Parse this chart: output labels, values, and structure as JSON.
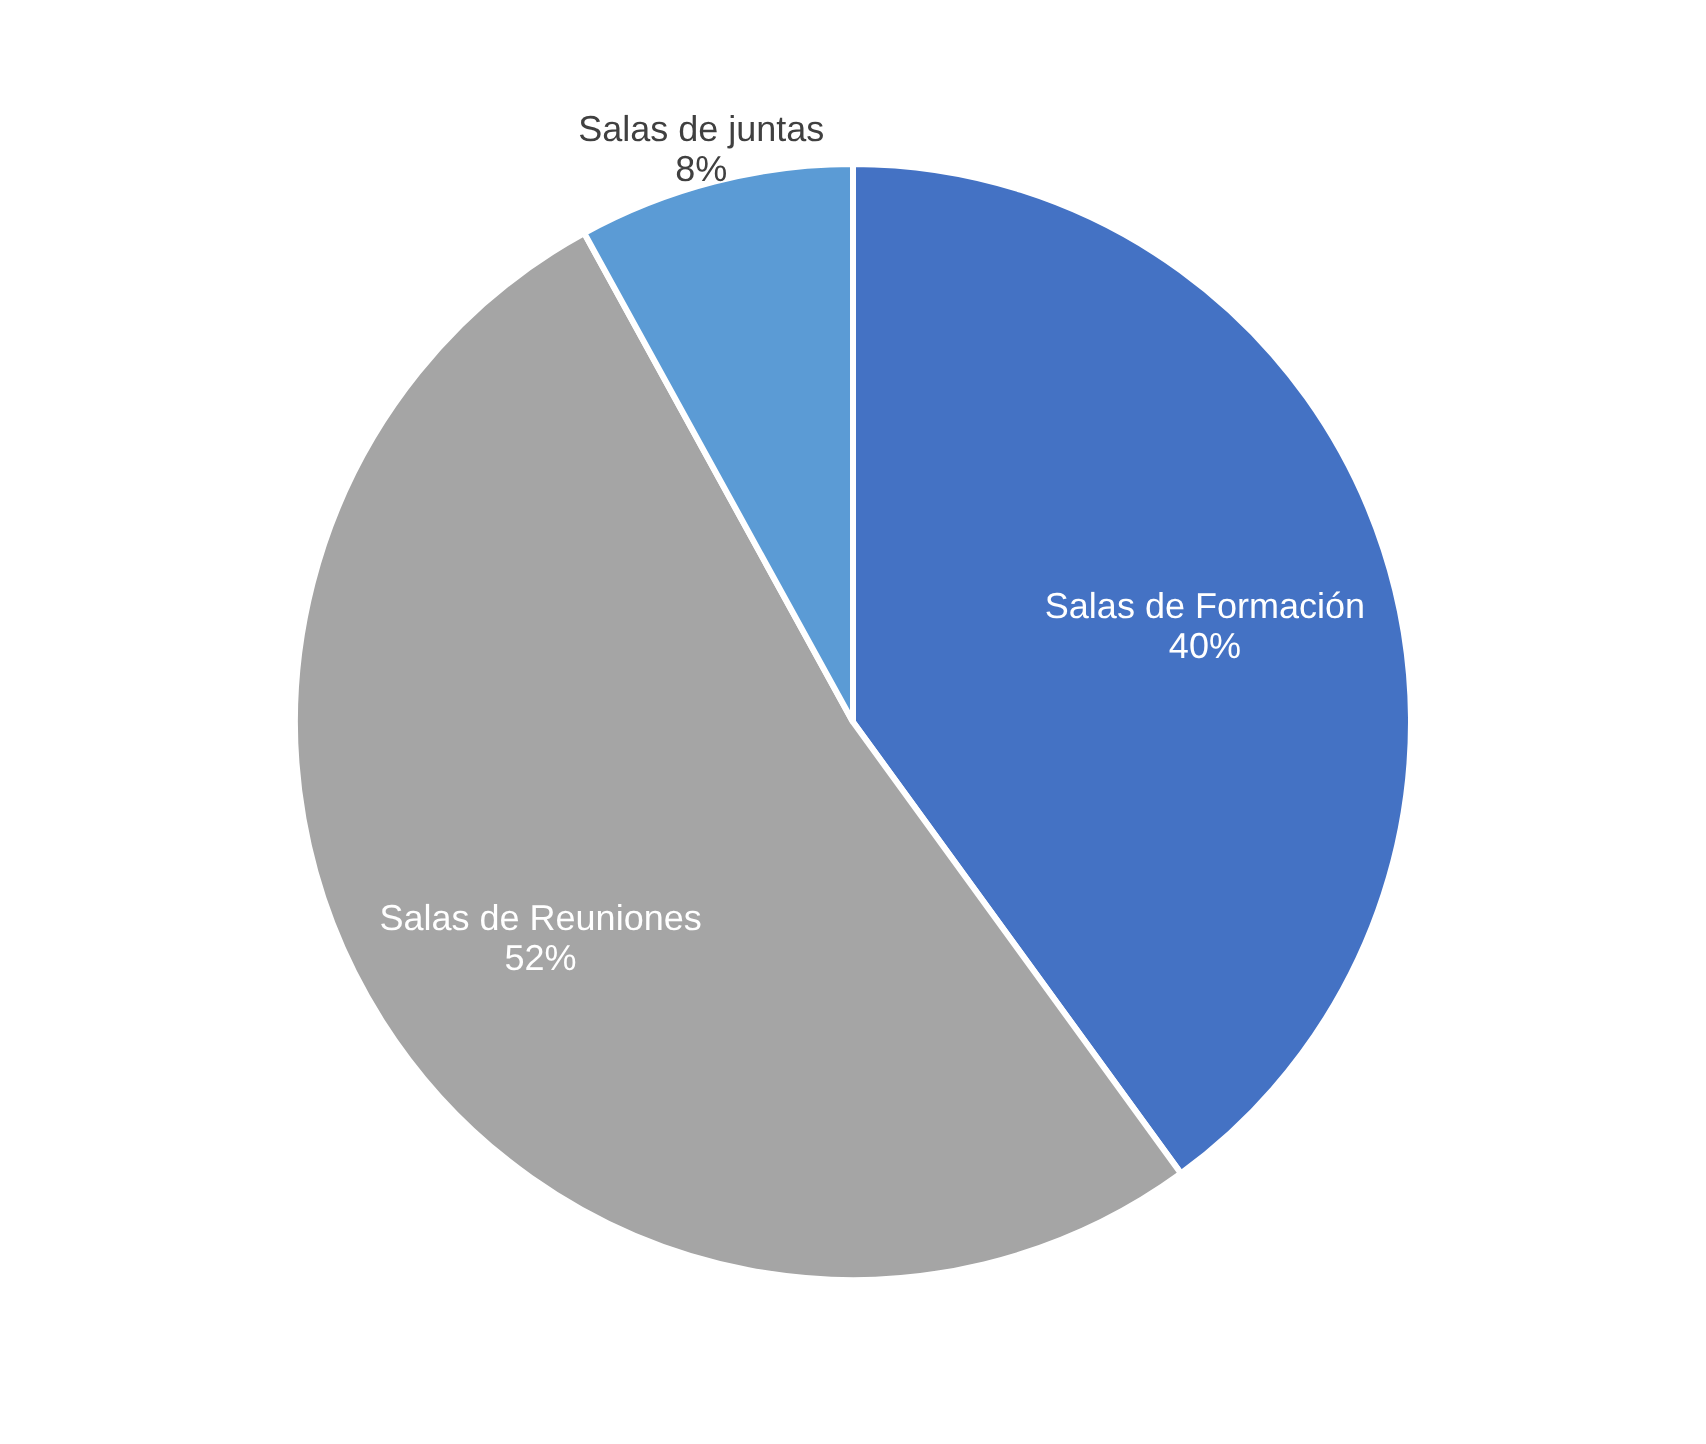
{
  "chart_data": {
    "type": "pie",
    "categories": [
      "Salas de Formación",
      "Salas de Reuniones",
      "Salas de juntas"
    ],
    "values": [
      40,
      52,
      8
    ],
    "value_labels": [
      "40%",
      "52%",
      "8%"
    ],
    "colors": [
      "#4472c4",
      "#a5a5a5",
      "#5b9bd5"
    ]
  }
}
